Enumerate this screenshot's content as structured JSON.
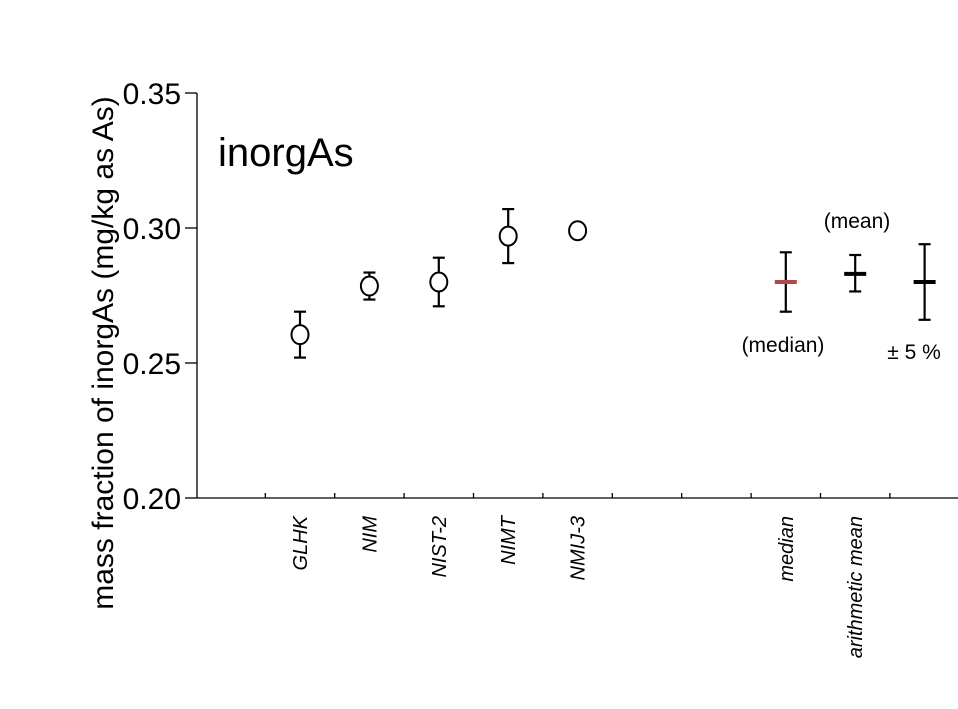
{
  "chart_data": {
    "type": "scatter",
    "title": "inorgAs",
    "ylabel": "mass fraction of inorgAs (mg/kg as As)",
    "xlabel": "",
    "ylim": [
      0.2,
      0.35
    ],
    "yticks": [
      "0.20",
      "0.25",
      "0.30",
      "0.35"
    ],
    "grid": false,
    "categories": [
      "GLHK",
      "NIM",
      "NIST-2",
      "NIMT",
      "NMIJ-3",
      "",
      "",
      "median",
      "arithmetic mean",
      ""
    ],
    "series": [
      {
        "marker": "circle",
        "color": "#000000",
        "points": [
          {
            "x": "GLHK",
            "y": 0.2605,
            "low": 0.252,
            "high": 0.269
          },
          {
            "x": "NIM",
            "y": 0.2785,
            "low": 0.2735,
            "high": 0.2835
          },
          {
            "x": "NIST-2",
            "y": 0.28,
            "low": 0.271,
            "high": 0.289
          },
          {
            "x": "NIMT",
            "y": 0.297,
            "low": 0.287,
            "high": 0.307
          },
          {
            "x": "NMIJ-3",
            "y": 0.299,
            "low": 0.2965,
            "high": 0.3015
          }
        ]
      },
      {
        "marker": "dash",
        "points": [
          {
            "x": "median",
            "y": 0.28,
            "low": 0.269,
            "high": 0.291,
            "color": "#b04a4a"
          },
          {
            "x": "arithmetic mean",
            "y": 0.283,
            "low": 0.2765,
            "high": 0.29,
            "color": "#000000"
          },
          {
            "slot": 9,
            "y": 0.28,
            "low": 0.266,
            "high": 0.294,
            "color": "#000000"
          }
        ]
      }
    ],
    "annotations": {
      "mean": "(mean)",
      "median": "(median)",
      "pct": "± 5 %"
    },
    "colors": {
      "median_label": "#a03a6a",
      "median_marker": "#b04a4a"
    }
  }
}
